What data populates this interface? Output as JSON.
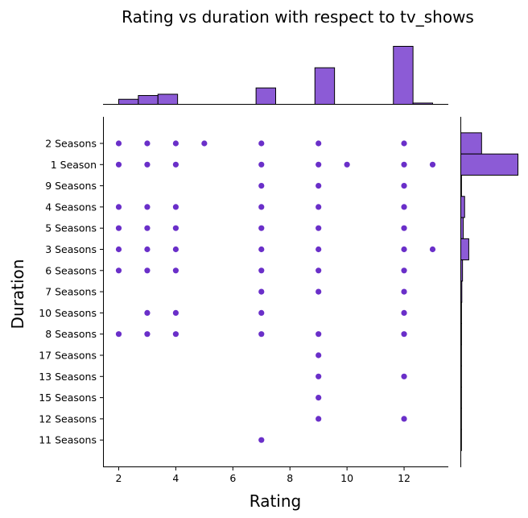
{
  "chart_data": {
    "type": "scatter",
    "title": "Rating vs duration with respect to tv_shows",
    "xlabel": "Rating",
    "ylabel": "Duration",
    "xlim": [
      1.45,
      13.55
    ],
    "x_ticks": [
      2,
      4,
      6,
      8,
      10,
      12
    ],
    "categories": [
      "2 Seasons",
      "1 Season",
      "9 Seasons",
      "4 Seasons",
      "5 Seasons",
      "3 Seasons",
      "6 Seasons",
      "7 Seasons",
      "10 Seasons",
      "8 Seasons",
      "17 Seasons",
      "13 Seasons",
      "15 Seasons",
      "12 Seasons",
      "11 Seasons"
    ],
    "points": [
      {
        "x": 2,
        "y": "2 Seasons"
      },
      {
        "x": 3,
        "y": "2 Seasons"
      },
      {
        "x": 4,
        "y": "2 Seasons"
      },
      {
        "x": 5,
        "y": "2 Seasons"
      },
      {
        "x": 7,
        "y": "2 Seasons"
      },
      {
        "x": 9,
        "y": "2 Seasons"
      },
      {
        "x": 12,
        "y": "2 Seasons"
      },
      {
        "x": 2,
        "y": "1 Season"
      },
      {
        "x": 3,
        "y": "1 Season"
      },
      {
        "x": 4,
        "y": "1 Season"
      },
      {
        "x": 7,
        "y": "1 Season"
      },
      {
        "x": 9,
        "y": "1 Season"
      },
      {
        "x": 10,
        "y": "1 Season"
      },
      {
        "x": 12,
        "y": "1 Season"
      },
      {
        "x": 13,
        "y": "1 Season"
      },
      {
        "x": 7,
        "y": "9 Seasons"
      },
      {
        "x": 9,
        "y": "9 Seasons"
      },
      {
        "x": 12,
        "y": "9 Seasons"
      },
      {
        "x": 2,
        "y": "4 Seasons"
      },
      {
        "x": 3,
        "y": "4 Seasons"
      },
      {
        "x": 4,
        "y": "4 Seasons"
      },
      {
        "x": 7,
        "y": "4 Seasons"
      },
      {
        "x": 9,
        "y": "4 Seasons"
      },
      {
        "x": 12,
        "y": "4 Seasons"
      },
      {
        "x": 2,
        "y": "5 Seasons"
      },
      {
        "x": 3,
        "y": "5 Seasons"
      },
      {
        "x": 4,
        "y": "5 Seasons"
      },
      {
        "x": 7,
        "y": "5 Seasons"
      },
      {
        "x": 9,
        "y": "5 Seasons"
      },
      {
        "x": 12,
        "y": "5 Seasons"
      },
      {
        "x": 2,
        "y": "3 Seasons"
      },
      {
        "x": 3,
        "y": "3 Seasons"
      },
      {
        "x": 4,
        "y": "3 Seasons"
      },
      {
        "x": 7,
        "y": "3 Seasons"
      },
      {
        "x": 9,
        "y": "3 Seasons"
      },
      {
        "x": 12,
        "y": "3 Seasons"
      },
      {
        "x": 13,
        "y": "3 Seasons"
      },
      {
        "x": 2,
        "y": "6 Seasons"
      },
      {
        "x": 3,
        "y": "6 Seasons"
      },
      {
        "x": 4,
        "y": "6 Seasons"
      },
      {
        "x": 7,
        "y": "6 Seasons"
      },
      {
        "x": 9,
        "y": "6 Seasons"
      },
      {
        "x": 12,
        "y": "6 Seasons"
      },
      {
        "x": 7,
        "y": "7 Seasons"
      },
      {
        "x": 9,
        "y": "7 Seasons"
      },
      {
        "x": 12,
        "y": "7 Seasons"
      },
      {
        "x": 3,
        "y": "10 Seasons"
      },
      {
        "x": 4,
        "y": "10 Seasons"
      },
      {
        "x": 7,
        "y": "10 Seasons"
      },
      {
        "x": 12,
        "y": "10 Seasons"
      },
      {
        "x": 2,
        "y": "8 Seasons"
      },
      {
        "x": 3,
        "y": "8 Seasons"
      },
      {
        "x": 4,
        "y": "8 Seasons"
      },
      {
        "x": 7,
        "y": "8 Seasons"
      },
      {
        "x": 9,
        "y": "8 Seasons"
      },
      {
        "x": 12,
        "y": "8 Seasons"
      },
      {
        "x": 9,
        "y": "17 Seasons"
      },
      {
        "x": 9,
        "y": "13 Seasons"
      },
      {
        "x": 12,
        "y": "13 Seasons"
      },
      {
        "x": 9,
        "y": "15 Seasons"
      },
      {
        "x": 9,
        "y": "12 Seasons"
      },
      {
        "x": 12,
        "y": "12 Seasons"
      },
      {
        "x": 7,
        "y": "11 Seasons"
      }
    ],
    "x_histogram": [
      {
        "x0": 2.0,
        "x1": 2.6875,
        "count": 4
      },
      {
        "x0": 2.6875,
        "x1": 3.375,
        "count": 7
      },
      {
        "x0": 3.375,
        "x1": 4.0625,
        "count": 8
      },
      {
        "x0": 6.8125,
        "x1": 7.5,
        "count": 13
      },
      {
        "x0": 8.875,
        "x1": 9.5625,
        "count": 29
      },
      {
        "x0": 11.625,
        "x1": 12.3125,
        "count": 46
      },
      {
        "x0": 12.3125,
        "x1": 13.0,
        "count": 1
      }
    ],
    "y_histogram": [
      {
        "category": "2 Seasons",
        "count": 60
      },
      {
        "category": "1 Season",
        "count": 165
      },
      {
        "category": "9 Seasons",
        "count": 2
      },
      {
        "category": "4 Seasons",
        "count": 11
      },
      {
        "category": "5 Seasons",
        "count": 7
      },
      {
        "category": "3 Seasons",
        "count": 23
      },
      {
        "category": "6 Seasons",
        "count": 5
      },
      {
        "category": "7 Seasons",
        "count": 3
      },
      {
        "category": "10 Seasons",
        "count": 2
      },
      {
        "category": "8 Seasons",
        "count": 2
      },
      {
        "category": "17 Seasons",
        "count": 1
      },
      {
        "category": "13 Seasons",
        "count": 1
      },
      {
        "category": "15 Seasons",
        "count": 1
      },
      {
        "category": "12 Seasons",
        "count": 1
      },
      {
        "category": "11 Seasons",
        "count": 1
      }
    ],
    "grid": false,
    "legend": "none"
  },
  "colors": {
    "point": "#6a2fc9",
    "hist_fill": "#8c5bd6",
    "hist_edge": "#000000",
    "axis": "#000000"
  }
}
